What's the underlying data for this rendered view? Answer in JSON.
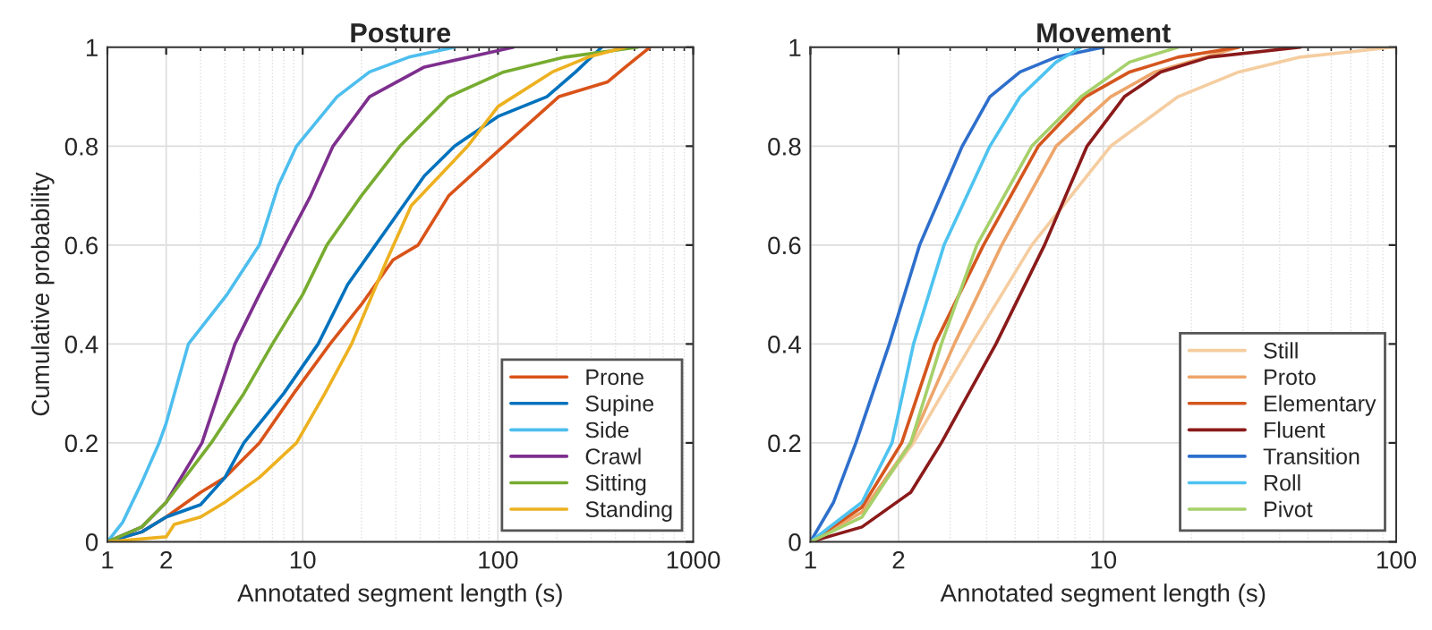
{
  "chart_data": [
    {
      "type": "line",
      "title": "Posture",
      "xlabel": "Annotated segment length (s)",
      "ylabel": "Cumulative probability",
      "log": "x",
      "xlim": [
        1,
        1000
      ],
      "xticks": [
        1,
        2,
        10,
        100,
        1000
      ],
      "ylim": [
        0,
        1
      ],
      "yticks": [
        0,
        0.2,
        0.4,
        0.6,
        0.8,
        1
      ],
      "grid": true,
      "legend": "bottom right",
      "line_style": "solid",
      "marker": "none",
      "series": [
        {
          "name": "Prone",
          "color": "#d95319",
          "x": [
            1,
            1.5,
            2,
            3,
            4,
            6,
            9,
            13.8,
            20,
            29,
            39,
            56,
            100,
            205,
            365,
            450,
            600
          ],
          "values": [
            0,
            0.02,
            0.05,
            0.1,
            0.13,
            0.2,
            0.3,
            0.4,
            0.48,
            0.57,
            0.6,
            0.7,
            0.79,
            0.9,
            0.93,
            0.96,
            1
          ]
        },
        {
          "name": "Supine",
          "color": "#0072bd",
          "x": [
            1,
            1.5,
            2,
            3,
            4,
            5,
            8,
            12,
            17,
            23.6,
            42,
            60,
            100,
            178,
            250,
            340
          ],
          "values": [
            0,
            0.02,
            0.05,
            0.075,
            0.13,
            0.2,
            0.3,
            0.4,
            0.52,
            0.6,
            0.74,
            0.8,
            0.86,
            0.9,
            0.95,
            1
          ]
        },
        {
          "name": "Side",
          "color": "#4dbeee",
          "x": [
            1,
            1.2,
            1.5,
            1.84,
            2,
            2.6,
            4.1,
            6,
            7.5,
            9.3,
            15,
            22,
            35,
            60
          ],
          "values": [
            0,
            0.04,
            0.12,
            0.2,
            0.24,
            0.4,
            0.5,
            0.6,
            0.72,
            0.8,
            0.9,
            0.95,
            0.98,
            1
          ]
        },
        {
          "name": "Crawl",
          "color": "#7e2f8e",
          "x": [
            1,
            1.5,
            2,
            3.05,
            4.5,
            6,
            8.1,
            11,
            14.3,
            22,
            42,
            120
          ],
          "values": [
            0,
            0.03,
            0.08,
            0.2,
            0.4,
            0.5,
            0.6,
            0.7,
            0.8,
            0.9,
            0.96,
            1
          ]
        },
        {
          "name": "Sitting",
          "color": "#77ac30",
          "x": [
            1,
            1.5,
            2,
            3.4,
            5,
            7,
            10,
            13.3,
            20,
            31.5,
            56,
            107,
            220,
            520
          ],
          "values": [
            0,
            0.03,
            0.08,
            0.2,
            0.3,
            0.4,
            0.5,
            0.6,
            0.7,
            0.8,
            0.9,
            0.95,
            0.98,
            1
          ]
        },
        {
          "name": "Standing",
          "color": "#edb120",
          "x": [
            1,
            2,
            2.2,
            3,
            4,
            6,
            9.3,
            13,
            17.8,
            27,
            36,
            70,
            100,
            190,
            290,
            450
          ],
          "values": [
            0,
            0.01,
            0.035,
            0.05,
            0.08,
            0.13,
            0.2,
            0.3,
            0.4,
            0.57,
            0.68,
            0.8,
            0.88,
            0.95,
            0.98,
            1
          ]
        }
      ]
    },
    {
      "type": "line",
      "title": "Movement",
      "xlabel": "Annotated segment length (s)",
      "log": "x",
      "xlim": [
        1,
        100
      ],
      "xticks": [
        1,
        2,
        10,
        100
      ],
      "ylim": [
        0,
        1
      ],
      "yticks": [
        0,
        0.2,
        0.4,
        0.6,
        0.8,
        1
      ],
      "grid": true,
      "legend": "bottom right",
      "line_style": "solid",
      "marker": "none",
      "series": [
        {
          "name": "Still",
          "color": "#f5cda0",
          "x": [
            1,
            1.5,
            2.25,
            3.55,
            5.7,
            10.6,
            18,
            29,
            47,
            97,
            100
          ],
          "values": [
            0,
            0.06,
            0.2,
            0.4,
            0.6,
            0.8,
            0.9,
            0.95,
            0.98,
            1,
            1
          ]
        },
        {
          "name": "Proto",
          "color": "#eda56a",
          "x": [
            1,
            1.5,
            2.2,
            3.1,
            4.5,
            6.9,
            10.6,
            15,
            29
          ],
          "values": [
            0,
            0.06,
            0.2,
            0.4,
            0.6,
            0.8,
            0.9,
            0.95,
            1
          ]
        },
        {
          "name": "Elementary",
          "color": "#d4561e",
          "x": [
            1,
            1.5,
            2.05,
            2.66,
            3.9,
            6,
            8.7,
            12.3,
            18,
            29
          ],
          "values": [
            0,
            0.07,
            0.2,
            0.4,
            0.6,
            0.8,
            0.9,
            0.95,
            0.98,
            1
          ]
        },
        {
          "name": "Fluent",
          "color": "#8b1a1a",
          "x": [
            1,
            1.5,
            2.2,
            2.8,
            4.3,
            6.3,
            8.8,
            11.8,
            15.7,
            23,
            47
          ],
          "values": [
            0,
            0.03,
            0.1,
            0.2,
            0.4,
            0.6,
            0.8,
            0.9,
            0.95,
            0.98,
            1
          ]
        },
        {
          "name": "Transition",
          "color": "#2e6fcc",
          "x": [
            1,
            1.2,
            1.43,
            1.86,
            2.36,
            3.3,
            4.1,
            5.2,
            6.9,
            10
          ],
          "values": [
            0,
            0.08,
            0.2,
            0.4,
            0.6,
            0.8,
            0.9,
            0.95,
            0.98,
            1
          ]
        },
        {
          "name": "Roll",
          "color": "#4ec3f0",
          "x": [
            1,
            1.5,
            1.9,
            2.25,
            2.86,
            4.1,
            5.2,
            6.9,
            8.4
          ],
          "values": [
            0,
            0.08,
            0.2,
            0.4,
            0.6,
            0.8,
            0.9,
            0.97,
            1
          ]
        },
        {
          "name": "Pivot",
          "color": "#a6d06a",
          "x": [
            1,
            1.5,
            2.2,
            2.8,
            3.7,
            5.7,
            8.4,
            12.3,
            18
          ],
          "values": [
            0,
            0.05,
            0.2,
            0.4,
            0.6,
            0.8,
            0.9,
            0.97,
            1
          ]
        }
      ]
    }
  ]
}
